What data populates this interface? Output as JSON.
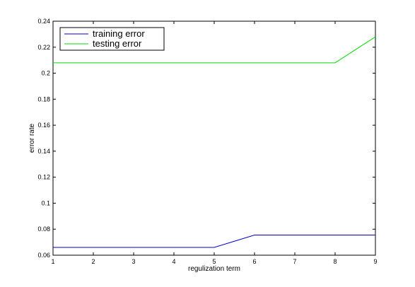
{
  "chart_data": {
    "type": "line",
    "title": "",
    "xlabel": "regulization term",
    "ylabel": "error rate",
    "xlim": [
      1,
      9
    ],
    "ylim": [
      0.06,
      0.24
    ],
    "x_ticks": [
      1,
      2,
      3,
      4,
      5,
      6,
      7,
      8,
      9
    ],
    "y_ticks": [
      0.06,
      0.08,
      0.1,
      0.12,
      0.14,
      0.16,
      0.18,
      0.2,
      0.22,
      0.24
    ],
    "y_tick_labels": [
      "0.06",
      "0.08",
      "0.1",
      "0.12",
      "0.14",
      "0.16",
      "0.18",
      "0.2",
      "0.22",
      "0.24"
    ],
    "grid": false,
    "legend_position": "top-left",
    "x": [
      1,
      2,
      3,
      4,
      5,
      6,
      7,
      8,
      9
    ],
    "series": [
      {
        "name": "training error",
        "color": "#0000cc",
        "values": [
          0.066,
          0.066,
          0.066,
          0.066,
          0.066,
          0.0755,
          0.0755,
          0.0755,
          0.0755
        ]
      },
      {
        "name": "testing error",
        "color": "#00dd00",
        "values": [
          0.208,
          0.208,
          0.208,
          0.208,
          0.208,
          0.208,
          0.208,
          0.208,
          0.228
        ]
      }
    ]
  }
}
